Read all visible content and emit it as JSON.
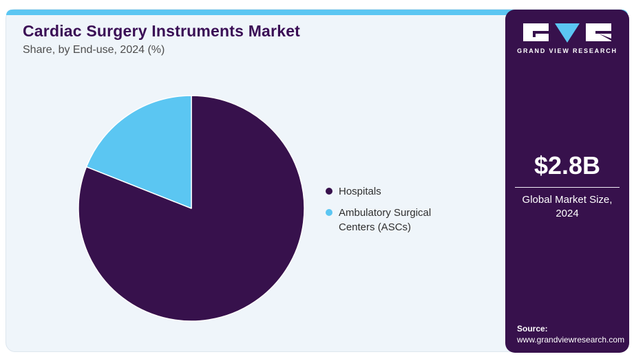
{
  "header": {
    "title": "Cardiac Surgery Instruments Market",
    "subtitle": "Share, by End-use, 2024 (%)"
  },
  "chart_data": {
    "type": "pie",
    "title": "Cardiac Surgery Instruments Market Share, by End-use, 2024 (%)",
    "categories": [
      "Hospitals",
      "Ambulatory Surgical Centers (ASCs)"
    ],
    "values": [
      81,
      19
    ],
    "unit": "%",
    "colors": [
      "#37114c",
      "#5bc6f2"
    ],
    "start_angle_deg": 0,
    "direction": "clockwise",
    "legend_position": "right",
    "slice_stroke": "#ffffff"
  },
  "sidebar": {
    "brand": "GRAND VIEW RESEARCH",
    "market_size_value": "$2.8B",
    "market_size_label": "Global Market Size, 2024",
    "source_label": "Source:",
    "source_url": "www.grandviewresearch.com",
    "background": "#37114c"
  },
  "theme": {
    "accent_cyan": "#5bc6f2",
    "brand_purple": "#37114c",
    "panel_background": "#eff5fa",
    "title_color": "#3a0e55",
    "outer_background": "#ffffff"
  }
}
